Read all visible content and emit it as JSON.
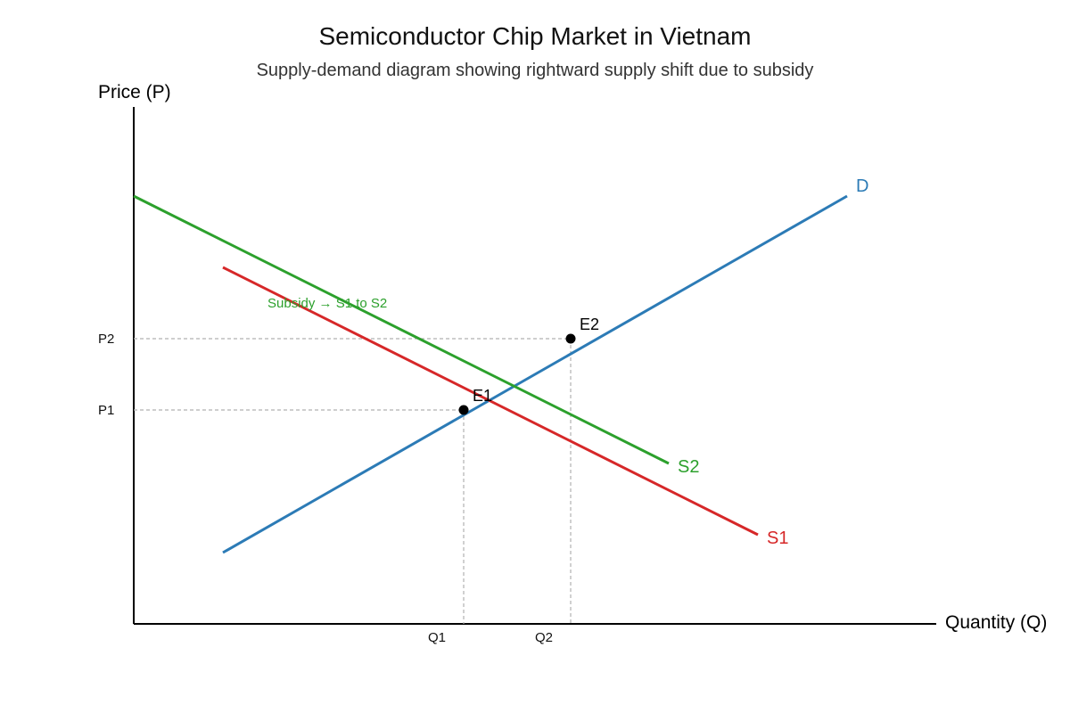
{
  "chart_data": {
    "type": "line",
    "title": "Semiconductor Chip Market in Vietnam",
    "subtitle": "Supply-demand diagram showing rightward supply shift due to subsidy",
    "xlabel": "Quantity (Q)",
    "ylabel": "Price (P)",
    "xlim": [
      0,
      9
    ],
    "ylim": [
      0,
      5.8
    ],
    "grid": false,
    "series": [
      {
        "name": "D",
        "color": "#2c7bb6",
        "x": [
          1,
          8
        ],
        "y": [
          0.8,
          4.8
        ]
      },
      {
        "name": "S1",
        "color": "#d62728",
        "x": [
          1,
          7
        ],
        "y": [
          4.0,
          1.0
        ]
      },
      {
        "name": "S2",
        "color": "#2ca02c",
        "x": [
          0,
          6
        ],
        "y": [
          4.8,
          1.8
        ]
      }
    ],
    "points": [
      {
        "label": "E1",
        "x": 3.7,
        "y": 2.4
      },
      {
        "label": "E2",
        "x": 4.9,
        "y": 3.2
      }
    ],
    "x_ticks": [
      {
        "label": "Q1",
        "value": 3.7
      },
      {
        "label": "Q2",
        "value": 4.9
      }
    ],
    "y_ticks": [
      {
        "label": "P1",
        "value": 2.4
      },
      {
        "label": "P2",
        "value": 3.2
      }
    ],
    "annotations": [
      {
        "text": "Subsidy → S1 to S2",
        "x": 1.5,
        "y": 3.55,
        "color": "#2ca02c"
      }
    ],
    "colors": {
      "axis": "#000000",
      "guide": "#b0b0b0",
      "point": "#000000"
    }
  }
}
